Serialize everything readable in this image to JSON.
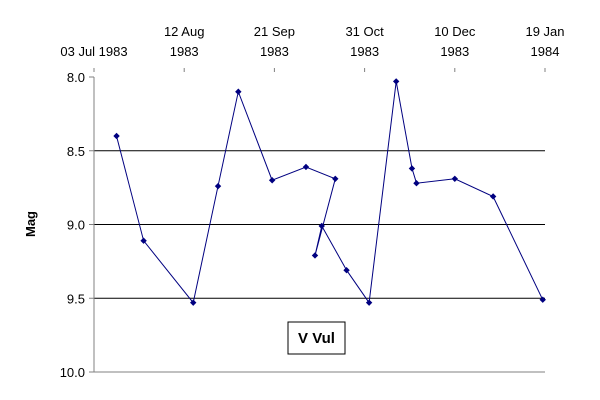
{
  "chart_data": {
    "type": "line",
    "title": "",
    "xlabel": "",
    "ylabel": "Mag",
    "annotation": "V Vul",
    "y_inverted": true,
    "ylim": [
      8.0,
      10.0
    ],
    "y_ticks": [
      "8.0",
      "8.5",
      "9.0",
      "9.5",
      "10.0"
    ],
    "y_tick_values": [
      8.0,
      8.5,
      9.0,
      9.5,
      10.0
    ],
    "xlim": [
      "1983-07-03",
      "1984-01-19"
    ],
    "x_axis_position": "top",
    "x_ticks": [
      {
        "date": "1983-07-03",
        "line1": "03 Jul 1983",
        "line2": ""
      },
      {
        "date": "1983-08-12",
        "line1": "12 Aug",
        "line2": "1983"
      },
      {
        "date": "1983-09-21",
        "line1": "21 Sep",
        "line2": "1983"
      },
      {
        "date": "1983-10-31",
        "line1": "31 Oct",
        "line2": "1983"
      },
      {
        "date": "1983-12-10",
        "line1": "10 Dec",
        "line2": "1983"
      },
      {
        "date": "1984-01-19",
        "line1": "19 Jan",
        "line2": "1984"
      }
    ],
    "gridlines": "horizontal",
    "legend": "none",
    "series_color": "#000080",
    "series": [
      {
        "x": [
          "1983-07-13",
          "1983-07-25",
          "1983-08-16",
          "1983-08-27",
          "1983-09-05",
          "1983-09-20",
          "1983-10-05",
          "1983-10-18",
          "1983-10-09",
          "1983-10-12",
          "1983-10-23",
          "1983-11-02",
          "1983-11-14",
          "1983-11-21",
          "1983-11-23",
          "1983-12-10",
          "1983-12-27",
          "1984-01-18"
        ],
        "y": [
          8.4,
          9.11,
          9.53,
          8.74,
          8.1,
          8.7,
          8.61,
          8.69,
          9.21,
          9.01,
          9.31,
          9.53,
          8.03,
          8.62,
          8.72,
          8.69,
          8.81,
          9.51
        ]
      }
    ]
  }
}
